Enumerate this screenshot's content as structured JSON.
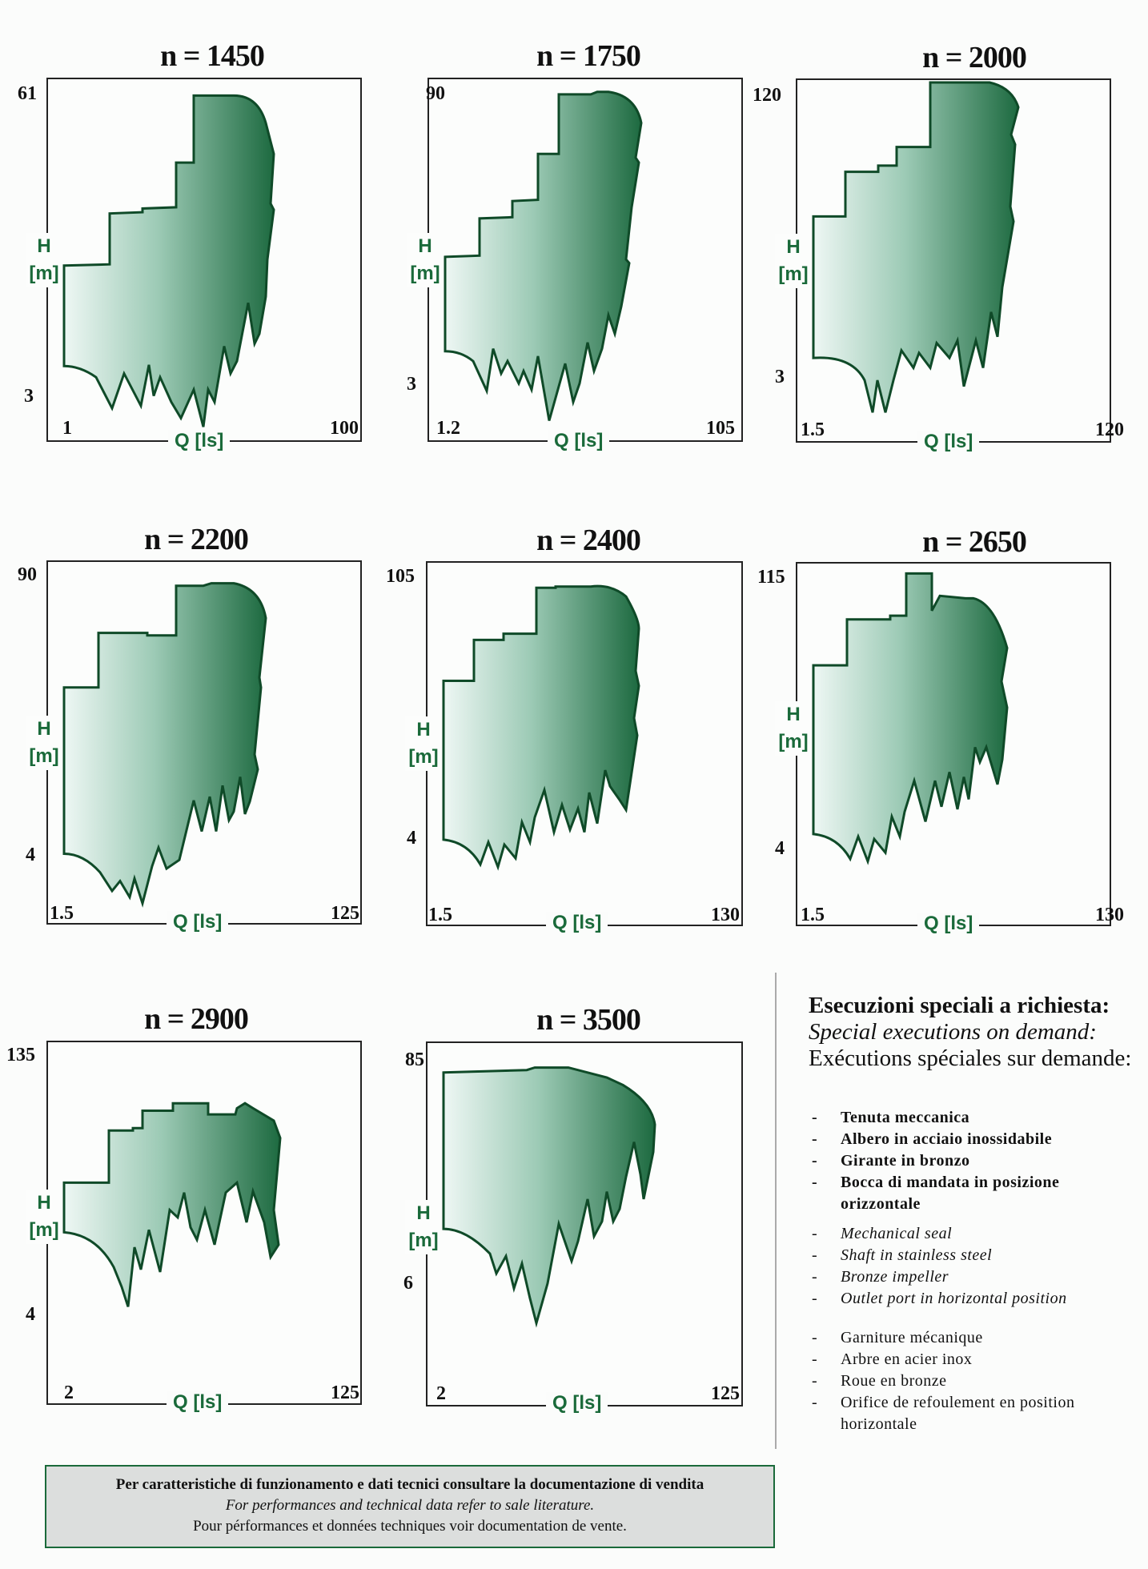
{
  "chart_data": [
    {
      "type": "area",
      "title": "n = 1450",
      "ylabel": "H\n[m]",
      "xlabel": "Q [ls]",
      "y_ticks": [
        "61",
        "3"
      ],
      "x_ticks": [
        "1",
        "100"
      ],
      "shape": "A"
    },
    {
      "type": "area",
      "title": "n = 1750",
      "ylabel": "H\n[m]",
      "xlabel": "Q [ls]",
      "y_ticks": [
        "90",
        "3"
      ],
      "x_ticks": [
        "1.2",
        "105"
      ],
      "shape": "B"
    },
    {
      "type": "area",
      "title": "n = 2000",
      "ylabel": "H\n[m]",
      "xlabel": "Q [ls]",
      "y_ticks": [
        "120",
        "3"
      ],
      "x_ticks": [
        "1.5",
        "120"
      ],
      "shape": "C"
    },
    {
      "type": "area",
      "title": "n = 2200",
      "ylabel": "H\n[m]",
      "xlabel": "Q [ls]",
      "y_ticks": [
        "90",
        "4"
      ],
      "x_ticks": [
        "1.5",
        "125"
      ],
      "shape": "D"
    },
    {
      "type": "area",
      "title": "n = 2400",
      "ylabel": "H\n[m]",
      "xlabel": "Q [ls]",
      "y_ticks": [
        "105",
        "4"
      ],
      "x_ticks": [
        "1.5",
        "130"
      ],
      "shape": "E"
    },
    {
      "type": "area",
      "title": "n = 2650",
      "ylabel": "H\n[m]",
      "xlabel": "Q [ls]",
      "y_ticks": [
        "115",
        "4"
      ],
      "x_ticks": [
        "1.5",
        "130"
      ],
      "shape": "F"
    },
    {
      "type": "area",
      "title": "n = 2900",
      "ylabel": "H\n[m]",
      "xlabel": "Q [ls]",
      "y_ticks": [
        "135",
        "4"
      ],
      "x_ticks": [
        "2",
        "125"
      ],
      "shape": "G"
    },
    {
      "type": "area",
      "title": "n = 3500",
      "ylabel": "H\n[m]",
      "xlabel": "Q [ls]",
      "y_ticks": [
        "85",
        "6"
      ],
      "x_ticks": [
        "2",
        "125"
      ],
      "shape": "H"
    }
  ],
  "colors": {
    "fill_light": "#e6f3ef",
    "fill_dark": "#1d6a40",
    "outline": "#0f4a28",
    "footer_border": "#1a6a3a"
  },
  "side": {
    "heading_it": "Esecuzioni speciali a richiesta:",
    "heading_en": "Special executions on demand:",
    "heading_fr": "Exécutions spéciales sur demande:",
    "items_it": [
      "Tenuta meccanica",
      "Albero in acciaio inossidabile",
      "Girante in bronzo",
      "Bocca di mandata in posizione orizzontale"
    ],
    "items_en": [
      "Mechanical seal",
      "Shaft in stainless steel",
      "Bronze impeller",
      "Outlet port in horizontal position"
    ],
    "items_fr": [
      "Garniture mécanique",
      "Arbre en acier inox",
      "Roue en bronze",
      "Orifice de refoulement en position horizontale"
    ]
  },
  "footer": {
    "line1": "Per caratteristiche di funzionamento e dati tecnici consultare la documentazione di vendita",
    "line2": "For performances and technical data refer to sale literature.",
    "line3": "Pour pérformances et données techniques voir documentation de vente."
  }
}
